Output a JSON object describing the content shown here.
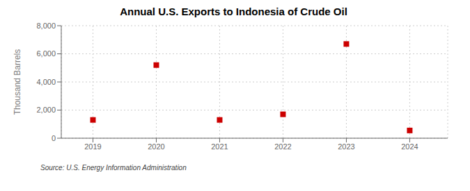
{
  "chart_data": {
    "type": "scatter",
    "title": "Annual U.S. Exports to Indonesia of Crude Oil",
    "y_label": "Thousand Barrels",
    "annotation": "Source: U.S. Energy Information Administration",
    "x": [
      2019,
      2020,
      2021,
      2022,
      2023,
      2024
    ],
    "values": [
      1300,
      5200,
      1300,
      1700,
      6700,
      550
    ],
    "color": "#cc0000",
    "marker": "square",
    "xlim": [
      2018.5,
      2024.6
    ],
    "xticks": [
      2019,
      2020,
      2021,
      2022,
      2023,
      2024
    ],
    "ylim": [
      0,
      8000
    ],
    "yticks": [
      0,
      {
        "value": 2000,
        "label": "2,000"
      },
      {
        "value": 4000,
        "label": "4,000"
      },
      {
        "value": 6000,
        "label": "6,000"
      },
      {
        "value": 8000,
        "label": "8,000"
      }
    ],
    "grid": true
  }
}
